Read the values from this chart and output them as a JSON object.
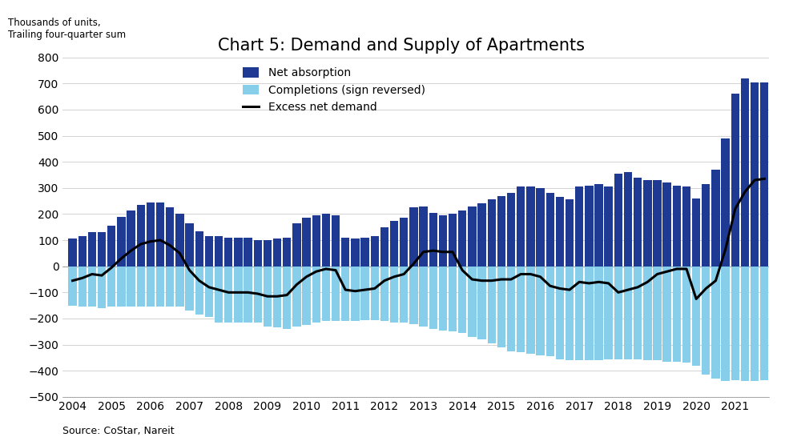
{
  "title": "Chart 5: Demand and Supply of Apartments",
  "ylabel_line1": "Thousands of units,",
  "ylabel_line2": "Trailing four-quarter sum",
  "source": "Source: CoStar, Nareit",
  "legend": [
    "Net absorption",
    "Completions (sign reversed)",
    "Excess net demand"
  ],
  "bar_color_absorption": "#1f3a93",
  "bar_color_completions": "#87ceeb",
  "line_color": "#000000",
  "ylim": [
    -500,
    800
  ],
  "yticks": [
    -500,
    -400,
    -300,
    -200,
    -100,
    0,
    100,
    200,
    300,
    400,
    500,
    600,
    700,
    800
  ],
  "net_absorption": [
    105,
    115,
    130,
    130,
    155,
    190,
    215,
    235,
    245,
    245,
    225,
    200,
    165,
    135,
    115,
    115,
    110,
    110,
    110,
    100,
    100,
    105,
    110,
    165,
    185,
    195,
    200,
    195,
    110,
    105,
    110,
    115,
    150,
    175,
    185,
    225,
    230,
    205,
    195,
    200,
    215,
    230,
    240,
    255,
    270,
    280,
    305,
    305,
    300,
    280,
    265,
    255,
    305,
    310,
    315,
    305,
    355,
    360,
    340,
    330,
    330,
    320,
    310,
    305,
    260,
    315,
    370,
    490,
    660,
    720,
    705,
    705
  ],
  "completions_neg": [
    -150,
    -155,
    -155,
    -160,
    -155,
    -155,
    -155,
    -155,
    -155,
    -155,
    -155,
    -155,
    -170,
    -185,
    -195,
    -215,
    -215,
    -215,
    -215,
    -215,
    -230,
    -235,
    -240,
    -230,
    -225,
    -215,
    -210,
    -210,
    -210,
    -210,
    -205,
    -205,
    -210,
    -215,
    -215,
    -220,
    -230,
    -240,
    -245,
    -250,
    -255,
    -270,
    -280,
    -295,
    -310,
    -325,
    -330,
    -335,
    -340,
    -345,
    -355,
    -360,
    -360,
    -360,
    -360,
    -355,
    -355,
    -355,
    -355,
    -360,
    -360,
    -365,
    -365,
    -370,
    -380,
    -415,
    -430,
    -440,
    -435,
    -440,
    -440,
    -435
  ],
  "excess_net_demand": [
    -55,
    -45,
    -30,
    -35,
    -5,
    30,
    60,
    85,
    95,
    100,
    80,
    50,
    -15,
    -55,
    -80,
    -90,
    -100,
    -100,
    -100,
    -105,
    -115,
    -115,
    -110,
    -70,
    -40,
    -20,
    -10,
    -15,
    -90,
    -95,
    -90,
    -85,
    -55,
    -40,
    -30,
    10,
    55,
    60,
    55,
    55,
    -15,
    -50,
    -55,
    -55,
    -50,
    -50,
    -30,
    -30,
    -40,
    -75,
    -85,
    -90,
    -60,
    -65,
    -60,
    -65,
    -100,
    -90,
    -80,
    -60,
    -30,
    -20,
    -10,
    -10,
    -125,
    -85,
    -55,
    65,
    220,
    285,
    330,
    335
  ],
  "xtick_years": [
    "2004",
    "2005",
    "2006",
    "2007",
    "2008",
    "2009",
    "2010",
    "2011",
    "2012",
    "2013",
    "2014",
    "2015",
    "2016",
    "2017",
    "2018",
    "2019",
    "2020",
    "2021"
  ]
}
